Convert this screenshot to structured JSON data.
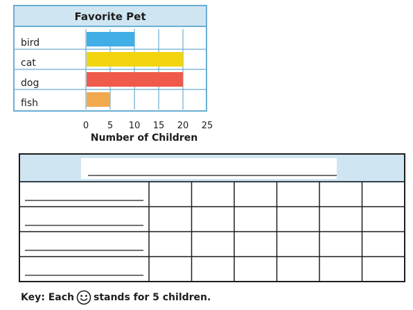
{
  "chart_data": [
    {
      "type": "bar",
      "orientation": "horizontal",
      "title": "Favorite Pet",
      "categories": [
        "bird",
        "cat",
        "dog",
        "fish"
      ],
      "values": [
        10,
        20,
        20,
        5
      ],
      "xlabel": "Number of Children",
      "ylabel": "",
      "xlim": [
        0,
        25
      ],
      "xticks": [
        "0",
        "5",
        "10",
        "15",
        "20",
        "25"
      ],
      "grid": true,
      "colors": [
        "#41aee6",
        "#f2d40f",
        "#f05a4a",
        "#f2a94e"
      ],
      "header_color": "#cfe5f2",
      "frame_color": "#6aaed3"
    },
    {
      "type": "table",
      "title": "",
      "rows": 4,
      "columns": 6,
      "cells": [],
      "header_color": "#cfe5f2"
    }
  ],
  "key": {
    "prefix": "Key: Each",
    "icon": "smiley-face-icon",
    "suffix": "stands for 5 children."
  }
}
